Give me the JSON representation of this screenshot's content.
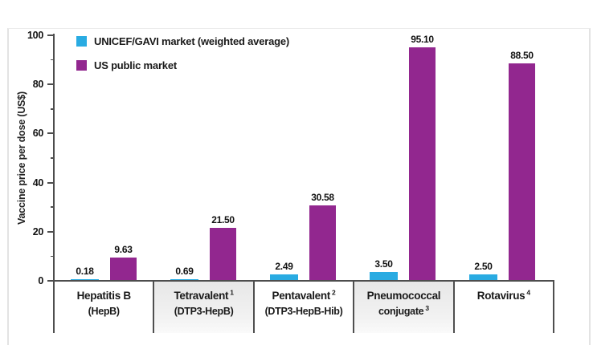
{
  "colors": {
    "unicef_gavi": "#29abe2",
    "us_public": "#92278f",
    "axis": "#4d4d4d",
    "shaded_cell": "#e7e7e7",
    "frame": "#e3e3e3"
  },
  "chart_data": {
    "type": "bar",
    "title": "",
    "xlabel": "",
    "ylabel": "Vaccine price per dose (US$)",
    "ylim": [
      0,
      100
    ],
    "y_major_ticks": [
      0,
      20,
      40,
      60,
      80,
      100
    ],
    "y_minor_ticks": [
      10,
      30,
      50,
      70,
      90
    ],
    "grid": false,
    "legend_position": "top-left",
    "categories": [
      {
        "lines": [
          {
            "text": "Hepatitis B",
            "sup": ""
          },
          {
            "text": "(HepB)",
            "sup": ""
          }
        ],
        "shaded": false
      },
      {
        "lines": [
          {
            "text": "Tetravalent",
            "sup": "1"
          },
          {
            "text": "(DTP3-HepB)",
            "sup": ""
          }
        ],
        "shaded": true
      },
      {
        "lines": [
          {
            "text": "Pentavalent",
            "sup": "2"
          },
          {
            "text": "(DTP3-HepB-Hib)",
            "sup": ""
          }
        ],
        "shaded": false
      },
      {
        "lines": [
          {
            "text": "Pneumococcal",
            "sup": ""
          },
          {
            "text": "conjugate",
            "sup": "3"
          }
        ],
        "shaded": true
      },
      {
        "lines": [
          {
            "text": "Rotavirus",
            "sup": "4"
          }
        ],
        "shaded": false
      }
    ],
    "series": [
      {
        "name": "UNICEF/GAVI market (weighted average)",
        "color": "#29abe2",
        "values": [
          0.18,
          0.69,
          2.49,
          3.5,
          2.5
        ],
        "value_labels": [
          "0.18",
          "0.69",
          "2.49",
          "3.50",
          "2.50"
        ]
      },
      {
        "name": "US public market",
        "color": "#92278f",
        "values": [
          9.63,
          21.5,
          30.58,
          95.1,
          88.5
        ],
        "value_labels": [
          "9.63",
          "21.50",
          "30.58",
          "95.10",
          "88.50"
        ]
      }
    ]
  }
}
